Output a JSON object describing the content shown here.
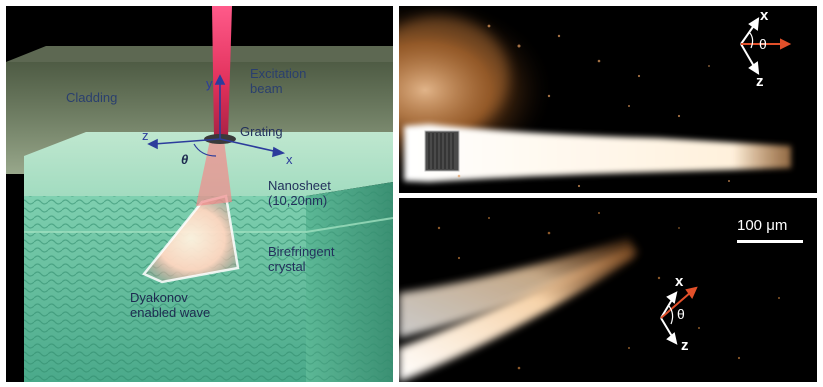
{
  "left_panel": {
    "labels": {
      "cladding": "Cladding",
      "excitation_beam": "Excitation\nbeam",
      "grating": "Grating",
      "nanosheet": "Nanosheet\n(10,20nm)",
      "birefringent_crystal": "Birefringent\ncrystal",
      "dyakonov_wave": "Dyakonov\nenabled wave"
    },
    "axes": {
      "x": "x",
      "y": "y",
      "z": "z",
      "theta": "θ"
    }
  },
  "right_top": {
    "axes": {
      "x": "x",
      "z": "z",
      "theta": "θ"
    }
  },
  "right_bottom": {
    "axes": {
      "x": "x",
      "z": "z",
      "theta": "θ"
    },
    "scale_bar": "100 μm"
  },
  "colors": {
    "cladding": "#8fa97a",
    "crystal": "#6fc4a8",
    "beam": "#e0305a",
    "wave_glow": "#ffe4b8",
    "arrow_orange": "#e2502a",
    "axis_blue": "#2c3c9c"
  }
}
